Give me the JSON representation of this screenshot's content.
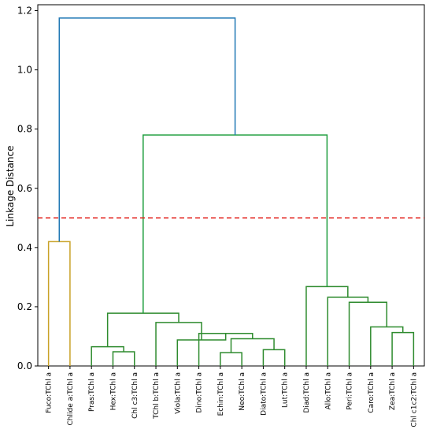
{
  "chart_data": {
    "type": "dendrogram",
    "title": "",
    "xlabel": "",
    "ylabel": "Linkage Distance",
    "ylim": [
      0,
      1.22
    ],
    "y_ticks": [
      0.0,
      0.2,
      0.4,
      0.6,
      0.8,
      1.0,
      1.2
    ],
    "y_tick_labels": [
      "0.0",
      "0.2",
      "0.4",
      "0.6",
      "0.8",
      "1.0",
      "1.2"
    ],
    "grid": false,
    "legend": "none",
    "leaves": [
      "Fuco:TChl a",
      "Chlide a:TChl a",
      "Pras:TChl a",
      "Hex:TChl a",
      "Chl c3:TChl a",
      "TChl b:TChl a",
      "Viola:TChl a",
      "Dino:TChl a",
      "Echin:TChl a",
      "Neo:TChl a",
      "Diato:TChl a",
      "Lut:TChl a",
      "Diad:TChl a",
      "Allo:TChl a",
      "Peri:TChl a",
      "Caro:TChl a",
      "Zea:TChl a",
      "Chl c1c2:TChl a"
    ],
    "threshold": {
      "value": 0.5,
      "color": "#e3201b",
      "style": "dashed"
    },
    "colors": {
      "cluster_orange": "#c9a227",
      "cluster_green": "#2e8b2e",
      "above_threshold": "#1f77b4",
      "upper_green": "#1e9e3e"
    },
    "merges": [
      {
        "left": 0,
        "right": 1,
        "height": 0.42,
        "color": "cluster_orange"
      },
      {
        "left": 3,
        "right": 4,
        "height": 0.048,
        "color": "cluster_green"
      },
      {
        "left": 2,
        "right": "m1",
        "height": 0.065,
        "color": "cluster_green"
      },
      {
        "left": 8,
        "right": 9,
        "height": 0.045,
        "color": "cluster_green"
      },
      {
        "left": 10,
        "right": 11,
        "height": 0.055,
        "color": "cluster_green"
      },
      {
        "left": "m3",
        "right": "m4",
        "height": 0.092,
        "color": "cluster_green"
      },
      {
        "left": 7,
        "right": "m5",
        "height": 0.11,
        "color": "cluster_green"
      },
      {
        "left": 6,
        "right": "m6",
        "height": 0.088,
        "color": "cluster_green"
      },
      {
        "left": 5,
        "right": "m7",
        "height": 0.147,
        "color": "cluster_green"
      },
      {
        "left": "m2",
        "right": "m8",
        "height": 0.178,
        "color": "cluster_green"
      },
      {
        "left": 16,
        "right": 17,
        "height": 0.113,
        "color": "cluster_green"
      },
      {
        "left": 15,
        "right": "m10",
        "height": 0.132,
        "color": "cluster_green"
      },
      {
        "left": 14,
        "right": "m11",
        "height": 0.215,
        "color": "cluster_green"
      },
      {
        "left": 13,
        "right": "m12",
        "height": 0.232,
        "color": "cluster_green"
      },
      {
        "left": 12,
        "right": "m13",
        "height": 0.268,
        "color": "cluster_green"
      },
      {
        "left": "m9",
        "right": "m14",
        "height": 0.78,
        "color": "upper_green"
      },
      {
        "left": "m0",
        "right": "m15",
        "height": 1.175,
        "color": "above_threshold"
      }
    ]
  }
}
